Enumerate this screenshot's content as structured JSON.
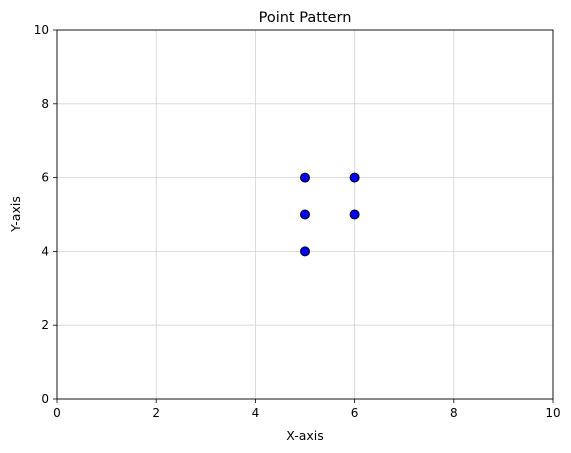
{
  "chart_data": {
    "type": "scatter",
    "title": "Point Pattern",
    "xlabel": "X-axis",
    "ylabel": "Y-axis",
    "xlim": [
      0,
      10
    ],
    "ylim": [
      0,
      10
    ],
    "xticks": [
      0,
      2,
      4,
      6,
      8,
      10
    ],
    "yticks": [
      0,
      2,
      4,
      6,
      8,
      10
    ],
    "grid": true,
    "point_color": "#0000ff",
    "edge_color": "#000000",
    "grid_color": "#d3d3d3",
    "points": [
      {
        "x": 5,
        "y": 6
      },
      {
        "x": 6,
        "y": 6
      },
      {
        "x": 5,
        "y": 5
      },
      {
        "x": 6,
        "y": 5
      },
      {
        "x": 5,
        "y": 4
      }
    ]
  }
}
